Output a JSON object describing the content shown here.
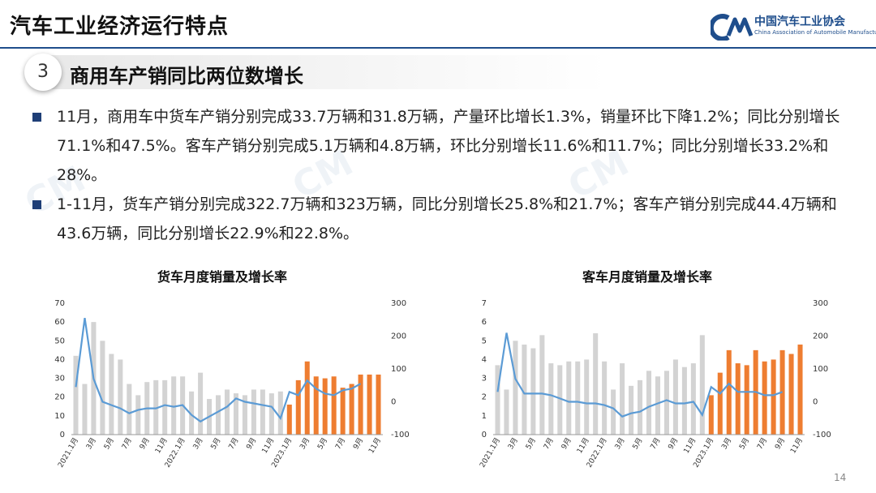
{
  "header": {
    "title": "汽车工业经济运行特点",
    "logo_cn": "中国汽车工业协会",
    "logo_en": "China Association of Automobile Manufacturers"
  },
  "section": {
    "number": "3",
    "title": "商用车产销同比两位数增长"
  },
  "bullets": [
    "11月，商用车中货车产销分别完成33.7万辆和31.8万辆，产量环比增长1.3%，销量环比下降1.2%；同比分别增长71.1%和47.5%。客车产销分别完成5.1万辆和4.8万辆，环比分别增长11.6%和11.7%；同比分别增长33.2%和28%。",
    "1-11月，货车产销分别完成322.7万辆和323万辆，同比分别增长25.8%和21.7%；客车产销分别完成44.4万辆和43.6万辆，同比分别增长22.9%和22.8%。"
  ],
  "page_number": "14",
  "colors": {
    "brand": "#1f4e8c",
    "bar_grey": "#d3d3d3",
    "bar_orange": "#ee7d31",
    "line_blue": "#5b9bd5"
  },
  "chart_data": [
    {
      "type": "bar",
      "title": "货车月度销量及增长率",
      "x_tick_labels": [
        "2021.1月",
        "3月",
        "5月",
        "7月",
        "9月",
        "11月",
        "2022.1月",
        "3月",
        "5月",
        "7月",
        "9月",
        "11月",
        "2023.1月",
        "3月",
        "5月",
        "7月",
        "9月",
        "11月"
      ],
      "y_left": {
        "ylim": [
          0,
          70
        ],
        "ticks": [
          0,
          10,
          20,
          30,
          40,
          50,
          60,
          70
        ]
      },
      "y_right": {
        "ylim": [
          -100,
          300
        ],
        "ticks": [
          -100,
          0,
          100,
          200,
          300
        ]
      },
      "series": [
        {
          "axis": "left",
          "kind": "bar",
          "color": "#d3d3d3",
          "values": [
            42,
            27,
            60,
            50,
            43,
            40,
            27,
            21,
            28,
            29,
            29,
            31,
            31,
            23,
            33,
            19,
            21,
            24,
            22,
            21,
            24,
            24,
            22,
            23
          ]
        },
        {
          "axis": "left",
          "kind": "bar",
          "color": "#ee7d31",
          "values": [
            16,
            29,
            39,
            31,
            30,
            31,
            25,
            27,
            32,
            32,
            32
          ]
        },
        {
          "axis": "right",
          "kind": "line",
          "color": "#5b9bd5",
          "values": [
            45,
            255,
            70,
            0,
            -10,
            -20,
            -35,
            -25,
            -20,
            -20,
            -10,
            -15,
            -10,
            -40,
            -60,
            -45,
            -30,
            -15,
            10,
            0,
            -5,
            -10,
            -15,
            -50,
            30,
            20,
            65,
            40,
            25,
            20,
            35,
            40,
            55
          ]
        }
      ]
    },
    {
      "type": "bar",
      "title": "客车月度销量及增长率",
      "x_tick_labels": [
        "2021.1月",
        "3月",
        "5月",
        "7月",
        "9月",
        "11月",
        "2022.1月",
        "3月",
        "5月",
        "7月",
        "9月",
        "11月",
        "2023.1月",
        "3月",
        "5月",
        "7月",
        "9月",
        "11月"
      ],
      "y_left": {
        "ylim": [
          0,
          7
        ],
        "ticks": [
          0,
          1,
          2,
          3,
          4,
          5,
          6,
          7
        ]
      },
      "y_right": {
        "ylim": [
          -100,
          300
        ],
        "ticks": [
          -100,
          0,
          100,
          200,
          300
        ]
      },
      "series": [
        {
          "axis": "left",
          "kind": "bar",
          "color": "#d3d3d3",
          "values": [
            3.7,
            2.4,
            5.0,
            4.8,
            4.6,
            5.3,
            3.8,
            3.7,
            3.9,
            3.9,
            4.0,
            5.4,
            3.9,
            2.4,
            3.8,
            2.6,
            2.9,
            3.4,
            3.1,
            3.4,
            4.0,
            3.6,
            3.8,
            5.3
          ]
        },
        {
          "axis": "left",
          "kind": "bar",
          "color": "#ee7d31",
          "values": [
            2.1,
            3.3,
            4.5,
            3.8,
            3.7,
            4.5,
            3.9,
            4.0,
            4.5,
            4.3,
            4.8
          ]
        },
        {
          "axis": "right",
          "kind": "line",
          "color": "#5b9bd5",
          "values": [
            30,
            210,
            70,
            25,
            25,
            25,
            20,
            10,
            0,
            0,
            -5,
            -5,
            -10,
            -20,
            -45,
            -35,
            -30,
            -15,
            -5,
            5,
            -5,
            -5,
            0,
            -40,
            45,
            25,
            55,
            30,
            30,
            30,
            20,
            20,
            30
          ]
        }
      ]
    }
  ]
}
